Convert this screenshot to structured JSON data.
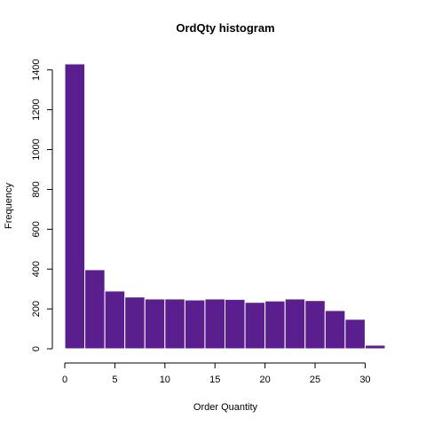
{
  "chart_data": {
    "type": "bar",
    "title": "OrdQty histogram",
    "xlabel": "Order Quantity",
    "ylabel": "Frequency",
    "bins": [
      [
        0,
        2
      ],
      [
        2,
        4
      ],
      [
        4,
        6
      ],
      [
        6,
        8
      ],
      [
        8,
        10
      ],
      [
        10,
        12
      ],
      [
        12,
        14
      ],
      [
        14,
        16
      ],
      [
        16,
        18
      ],
      [
        18,
        20
      ],
      [
        20,
        22
      ],
      [
        22,
        24
      ],
      [
        24,
        26
      ],
      [
        26,
        28
      ],
      [
        28,
        30
      ],
      [
        30,
        32
      ]
    ],
    "values": [
      1430,
      397,
      290,
      260,
      250,
      250,
      245,
      250,
      248,
      233,
      240,
      250,
      242,
      192,
      148,
      18
    ],
    "xlim": [
      0,
      32
    ],
    "ylim": [
      0,
      1430
    ],
    "xticks": [
      0,
      5,
      10,
      15,
      20,
      25,
      30
    ],
    "yticks": [
      0,
      200,
      400,
      600,
      800,
      1000,
      1200,
      1400
    ],
    "bar_color": "#5B1E8F",
    "bar_edge_color": "#ffffff",
    "grid": false,
    "legend": "none"
  }
}
